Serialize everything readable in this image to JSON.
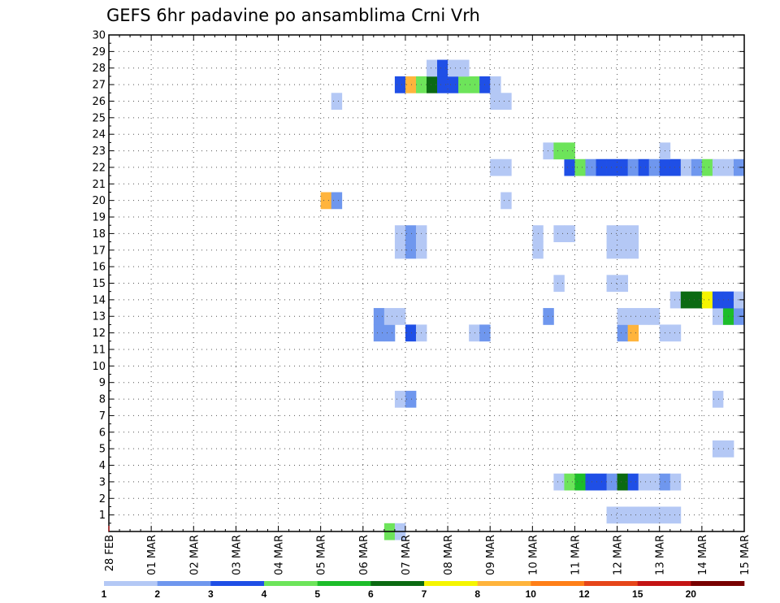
{
  "chart_data": {
    "type": "heatmap",
    "title": "GEFS 6hr padavine po ansamblima Crni Vrh",
    "x_tick_labels": [
      "28 FEB",
      "01 MAR",
      "02 MAR",
      "03 MAR",
      "04 MAR",
      "05 MAR",
      "06 MAR",
      "07 MAR",
      "08 MAR",
      "09 MAR",
      "10 MAR",
      "11 MAR",
      "12 MAR",
      "13 MAR",
      "14 MAR",
      "15 MAR"
    ],
    "y_tick_labels": [
      "1",
      "2",
      "3",
      "4",
      "5",
      "6",
      "7",
      "8",
      "9",
      "10",
      "11",
      "12",
      "13",
      "14",
      "15",
      "16",
      "17",
      "18",
      "19",
      "20",
      "21",
      "22",
      "23",
      "24",
      "25",
      "26",
      "27",
      "28",
      "29",
      "30"
    ],
    "x_range_days": [
      0,
      15
    ],
    "y_range": [
      0,
      30
    ],
    "time_step_hours": 6,
    "grid": true,
    "color_levels": [
      "1",
      "2",
      "3",
      "4",
      "5",
      "6",
      "7",
      "8",
      "10",
      "12",
      "15",
      "20"
    ],
    "color_scale": [
      "#b4c8f5",
      "#6f97ee",
      "#1f4fe6",
      "#6de45a",
      "#1dbd2a",
      "#0b6a12",
      "#f5f500",
      "#ffb43c",
      "#ff7f18",
      "#e6461a",
      "#c41414",
      "#780000"
    ],
    "cells": [
      [
        6.5,
        0,
        3
      ],
      [
        6.75,
        0,
        0
      ],
      [
        11.75,
        1,
        0
      ],
      [
        12.0,
        1,
        0
      ],
      [
        12.25,
        1,
        0
      ],
      [
        12.5,
        1,
        0
      ],
      [
        12.75,
        1,
        0
      ],
      [
        13.0,
        1,
        0
      ],
      [
        13.25,
        1,
        0
      ],
      [
        10.5,
        3,
        0
      ],
      [
        10.75,
        3,
        3
      ],
      [
        11.0,
        3,
        4
      ],
      [
        11.25,
        3,
        2
      ],
      [
        11.5,
        3,
        2
      ],
      [
        11.75,
        3,
        1
      ],
      [
        12.0,
        3,
        5
      ],
      [
        12.25,
        3,
        2
      ],
      [
        12.5,
        3,
        0
      ],
      [
        12.75,
        3,
        0
      ],
      [
        13.0,
        3,
        1
      ],
      [
        13.25,
        3,
        0
      ],
      [
        14.25,
        5,
        0
      ],
      [
        14.5,
        5,
        0
      ],
      [
        14.25,
        8,
        0
      ],
      [
        6.75,
        8,
        0
      ],
      [
        7.0,
        8,
        1
      ],
      [
        6.25,
        12,
        1
      ],
      [
        6.5,
        12,
        1
      ],
      [
        7.0,
        12,
        2
      ],
      [
        7.25,
        12,
        0
      ],
      [
        8.5,
        12,
        0
      ],
      [
        8.75,
        12,
        1
      ],
      [
        12.0,
        12,
        1
      ],
      [
        12.25,
        12,
        7
      ],
      [
        13.0,
        12,
        0
      ],
      [
        13.25,
        12,
        0
      ],
      [
        6.25,
        13,
        1
      ],
      [
        6.5,
        13,
        0
      ],
      [
        6.75,
        13,
        0
      ],
      [
        10.25,
        13,
        1
      ],
      [
        12.0,
        13,
        0
      ],
      [
        12.25,
        13,
        0
      ],
      [
        12.5,
        13,
        0
      ],
      [
        12.75,
        13,
        0
      ],
      [
        14.25,
        13,
        0
      ],
      [
        14.5,
        13,
        4
      ],
      [
        14.75,
        13,
        1
      ],
      [
        13.25,
        14,
        0
      ],
      [
        13.5,
        14,
        5
      ],
      [
        13.75,
        14,
        5
      ],
      [
        14.0,
        14,
        6
      ],
      [
        14.25,
        14,
        2
      ],
      [
        14.5,
        14,
        2
      ],
      [
        14.75,
        14,
        0
      ],
      [
        10.5,
        15,
        0
      ],
      [
        11.75,
        15,
        0
      ],
      [
        12.0,
        15,
        0
      ],
      [
        6.75,
        17,
        0
      ],
      [
        7.0,
        17,
        1
      ],
      [
        7.25,
        17,
        0
      ],
      [
        10.0,
        17,
        0
      ],
      [
        11.75,
        17,
        0
      ],
      [
        12.0,
        17,
        0
      ],
      [
        12.25,
        17,
        0
      ],
      [
        6.75,
        18,
        0
      ],
      [
        7.0,
        18,
        1
      ],
      [
        7.25,
        18,
        0
      ],
      [
        10.0,
        18,
        0
      ],
      [
        11.75,
        18,
        0
      ],
      [
        12.0,
        18,
        0
      ],
      [
        12.25,
        18,
        0
      ],
      [
        10.5,
        18,
        0
      ],
      [
        10.75,
        18,
        0
      ],
      [
        5.0,
        20,
        7
      ],
      [
        5.25,
        20,
        1
      ],
      [
        9.25,
        20,
        0
      ],
      [
        9.0,
        22,
        0
      ],
      [
        9.25,
        22,
        0
      ],
      [
        10.75,
        22,
        2
      ],
      [
        11.0,
        22,
        3
      ],
      [
        11.25,
        22,
        1
      ],
      [
        11.5,
        22,
        2
      ],
      [
        11.75,
        22,
        2
      ],
      [
        12.0,
        22,
        2
      ],
      [
        12.25,
        22,
        1
      ],
      [
        12.5,
        22,
        2
      ],
      [
        12.75,
        22,
        1
      ],
      [
        13.0,
        22,
        2
      ],
      [
        13.25,
        22,
        2
      ],
      [
        13.5,
        22,
        0
      ],
      [
        13.75,
        22,
        1
      ],
      [
        14.0,
        22,
        3
      ],
      [
        14.25,
        22,
        0
      ],
      [
        14.5,
        22,
        0
      ],
      [
        14.75,
        22,
        1
      ],
      [
        10.25,
        23,
        0
      ],
      [
        10.5,
        23,
        3
      ],
      [
        10.75,
        23,
        3
      ],
      [
        13.0,
        23,
        0
      ],
      [
        5.25,
        26,
        0
      ],
      [
        9.0,
        26,
        0
      ],
      [
        9.25,
        26,
        0
      ],
      [
        6.75,
        27,
        2
      ],
      [
        7.0,
        27,
        7
      ],
      [
        7.25,
        27,
        3
      ],
      [
        7.5,
        27,
        5
      ],
      [
        7.75,
        27,
        2
      ],
      [
        8.0,
        27,
        2
      ],
      [
        8.25,
        27,
        3
      ],
      [
        8.5,
        27,
        3
      ],
      [
        8.75,
        27,
        2
      ],
      [
        9.0,
        27,
        0
      ],
      [
        7.5,
        28,
        0
      ],
      [
        7.75,
        28,
        2
      ],
      [
        8.0,
        28,
        0
      ],
      [
        8.25,
        28,
        0
      ]
    ]
  }
}
